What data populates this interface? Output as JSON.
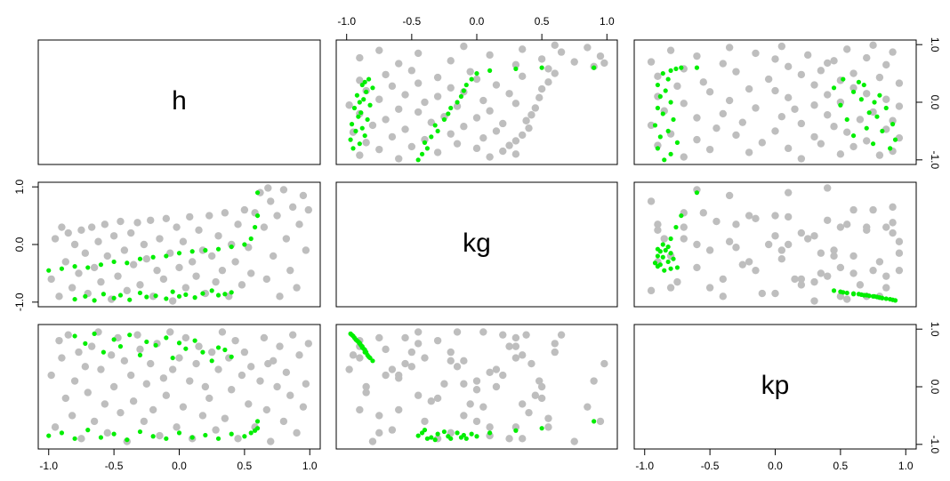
{
  "chart_data": {
    "type": "scatter-matrix",
    "variables": [
      "h",
      "kg",
      "kp"
    ],
    "xlim": [
      -1.08,
      1.08
    ],
    "ylim": [
      -1.08,
      1.08
    ],
    "xticks": [
      {
        "value": -1,
        "label": "-1.0"
      },
      {
        "value": -0.5,
        "label": "-0.5"
      },
      {
        "value": 0,
        "label": "0.0"
      },
      {
        "value": 0.5,
        "label": "0.5"
      },
      {
        "value": 1,
        "label": "1.0"
      }
    ],
    "yticks": [
      {
        "value": -1,
        "label": "-1.0"
      },
      {
        "value": 0,
        "label": "0.0"
      },
      {
        "value": 1,
        "label": "1.0"
      }
    ],
    "series": [
      {
        "color": "#bebebe",
        "h": [
          -0.98,
          -0.95,
          -0.92,
          -0.9,
          -0.87,
          -0.85,
          -0.82,
          -0.8,
          -0.77,
          -0.75,
          -0.72,
          -0.7,
          -0.67,
          -0.65,
          -0.62,
          -0.6,
          -0.57,
          -0.55,
          -0.52,
          -0.5,
          -0.47,
          -0.45,
          -0.42,
          -0.4,
          -0.37,
          -0.35,
          -0.32,
          -0.3,
          -0.27,
          -0.25,
          -0.22,
          -0.2,
          -0.17,
          -0.15,
          -0.12,
          -0.1,
          -0.07,
          -0.05,
          -0.02,
          0.0,
          0.03,
          0.05,
          0.08,
          0.1,
          0.13,
          0.15,
          0.18,
          0.2,
          0.23,
          0.25,
          0.28,
          0.3,
          0.33,
          0.35,
          0.38,
          0.4,
          0.43,
          0.45,
          0.48,
          0.5,
          0.53,
          0.55,
          0.58,
          0.62,
          0.65,
          0.67,
          0.7,
          0.72,
          0.75,
          0.77,
          0.8,
          0.82,
          0.85,
          0.87,
          0.9,
          0.92,
          0.95,
          0.97,
          0.99,
          0.68
        ],
        "kg": [
          -0.6,
          0.1,
          -0.9,
          0.3,
          -0.3,
          0.2,
          -0.75,
          0.0,
          -0.5,
          0.25,
          -0.15,
          -0.85,
          0.3,
          -0.4,
          0.05,
          -0.65,
          0.35,
          -0.2,
          -0.95,
          0.15,
          -0.55,
          0.4,
          -0.1,
          -0.8,
          0.2,
          -0.35,
          0.38,
          -0.7,
          0.0,
          -0.25,
          0.42,
          -0.9,
          -0.45,
          0.1,
          -0.6,
          0.45,
          -0.15,
          -0.98,
          0.3,
          -0.4,
          0.05,
          -0.75,
          0.48,
          -0.3,
          -0.55,
          0.25,
          -0.1,
          -0.85,
          0.5,
          -0.2,
          -0.65,
          0.15,
          -0.45,
          0.55,
          -0.9,
          0.0,
          -0.3,
          0.35,
          -0.7,
          0.6,
          -0.05,
          -0.5,
          0.55,
          0.9,
          0.3,
          -0.6,
          0.75,
          -0.2,
          0.5,
          -0.9,
          0.95,
          0.1,
          -0.45,
          0.65,
          -0.75,
          0.35,
          0.85,
          -0.1,
          0.6,
          0.98
        ],
        "kp": [
          0.2,
          -0.7,
          0.8,
          0.5,
          -0.2,
          0.9,
          -0.5,
          0.1,
          0.6,
          -0.9,
          0.35,
          -0.1,
          0.7,
          -0.6,
          0.95,
          0.3,
          -0.3,
          -0.8,
          0.55,
          0.0,
          0.85,
          -0.45,
          0.45,
          -0.95,
          0.2,
          -0.25,
          0.9,
          0.65,
          -0.6,
          0.05,
          0.4,
          -0.4,
          0.75,
          -0.85,
          0.15,
          -0.15,
          0.95,
          0.3,
          -0.7,
          0.5,
          -0.35,
          0.85,
          0.1,
          -0.9,
          0.4,
          0.7,
          -0.5,
          0.0,
          -0.2,
          0.6,
          -0.75,
          0.3,
          0.95,
          -0.55,
          0.5,
          -0.05,
          0.8,
          -0.9,
          0.2,
          0.6,
          -0.3,
          0.35,
          -0.7,
          0.1,
          0.85,
          -0.4,
          -0.95,
          0.45,
          0.0,
          0.7,
          -0.6,
          0.25,
          -0.15,
          0.9,
          -0.8,
          0.55,
          -0.35,
          0.05,
          0.75,
          0.4
        ]
      },
      {
        "color": "#00ee00",
        "h": [
          -0.8,
          -0.72,
          -0.65,
          -0.58,
          -0.5,
          -0.45,
          -0.38,
          -0.3,
          -0.25,
          -0.18,
          -0.1,
          -0.05,
          0.0,
          0.05,
          0.12,
          0.18,
          0.25,
          0.3,
          0.35,
          0.4,
          -1,
          -0.9,
          -0.8,
          -0.7,
          -0.6,
          -0.5,
          -0.4,
          -0.3,
          -0.2,
          -0.1,
          0.0,
          0.1,
          0.2,
          0.3,
          0.4,
          0.5,
          0.55,
          0.58,
          0.6,
          0.6
        ],
        "kg": [
          -0.95,
          -0.9,
          -0.97,
          -0.86,
          -0.93,
          -0.88,
          -0.96,
          -0.84,
          -0.91,
          -0.89,
          -0.94,
          -0.82,
          -0.9,
          -0.87,
          -0.92,
          -0.85,
          -0.8,
          -0.88,
          -0.86,
          -0.83,
          -0.45,
          -0.42,
          -0.38,
          -0.4,
          -0.35,
          -0.3,
          -0.32,
          -0.25,
          -0.22,
          -0.2,
          -0.15,
          -0.12,
          -0.1,
          -0.08,
          -0.04,
          0.0,
          0.1,
          0.3,
          0.5,
          0.9
        ],
        "kp": [
          0.88,
          0.75,
          0.92,
          0.6,
          0.82,
          0.7,
          0.9,
          0.55,
          0.78,
          0.72,
          0.85,
          0.5,
          0.76,
          0.66,
          0.8,
          0.6,
          0.45,
          0.68,
          0.64,
          0.52,
          -0.85,
          -0.8,
          -0.9,
          -0.75,
          -0.88,
          -0.82,
          -0.92,
          -0.78,
          -0.86,
          -0.9,
          -0.8,
          -0.88,
          -0.84,
          -0.9,
          -0.82,
          -0.86,
          -0.8,
          -0.76,
          -0.72,
          -0.6
        ]
      }
    ]
  }
}
